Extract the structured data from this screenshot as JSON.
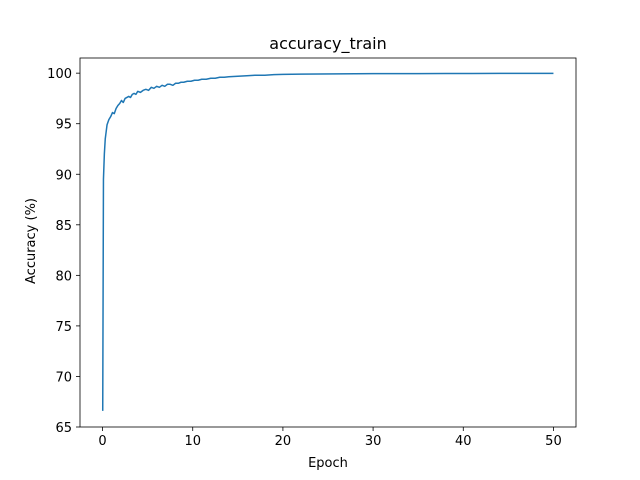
{
  "chart_data": {
    "type": "line",
    "title": "accuracy_train",
    "xlabel": "Epoch",
    "ylabel": "Accuracy (%)",
    "xlim": [
      -2.5,
      52.5
    ],
    "ylim": [
      65,
      101.5
    ],
    "xticks": [
      0,
      10,
      20,
      30,
      40,
      50
    ],
    "yticks": [
      65,
      70,
      75,
      80,
      85,
      90,
      95,
      100
    ],
    "grid": false,
    "series_color": "#1f77b4",
    "series": [
      {
        "x": [
          0.02,
          0.1,
          0.2,
          0.3,
          0.4,
          0.5,
          0.7,
          0.9,
          1.1,
          1.3,
          1.5,
          1.7,
          1.9,
          2.1,
          2.3,
          2.5,
          2.7,
          2.9,
          3.1,
          3.3,
          3.5,
          3.7,
          3.9,
          4.2,
          4.5,
          4.8,
          5.1,
          5.4,
          5.7,
          6.0,
          6.3,
          6.6,
          6.9,
          7.2,
          7.5,
          7.8,
          8.1,
          8.4,
          8.7,
          9.0,
          9.4,
          9.8,
          10.2,
          10.6,
          11.0,
          11.5,
          12.0,
          12.5,
          13.0,
          13.5,
          14.0,
          15.0,
          16.0,
          17.0,
          18.0,
          19.0,
          20.0,
          22.0,
          24.0,
          26.0,
          28.0,
          30.0,
          32.0,
          35.0,
          38.0,
          41.0,
          44.0,
          47.0,
          50.0
        ],
        "y": [
          66.6,
          89.5,
          92.0,
          93.5,
          94.2,
          94.9,
          95.4,
          95.7,
          96.1,
          96.0,
          96.5,
          96.8,
          97.0,
          97.3,
          97.1,
          97.5,
          97.6,
          97.7,
          97.6,
          97.9,
          98.0,
          97.9,
          98.2,
          98.1,
          98.3,
          98.4,
          98.3,
          98.6,
          98.5,
          98.7,
          98.6,
          98.8,
          98.7,
          98.9,
          98.9,
          98.8,
          99.0,
          99.0,
          99.1,
          99.1,
          99.2,
          99.2,
          99.3,
          99.3,
          99.4,
          99.4,
          99.5,
          99.5,
          99.6,
          99.6,
          99.65,
          99.7,
          99.75,
          99.8,
          99.8,
          99.85,
          99.88,
          99.9,
          99.92,
          99.93,
          99.94,
          99.95,
          99.95,
          99.96,
          99.97,
          99.97,
          99.98,
          99.98,
          99.98
        ]
      }
    ]
  }
}
